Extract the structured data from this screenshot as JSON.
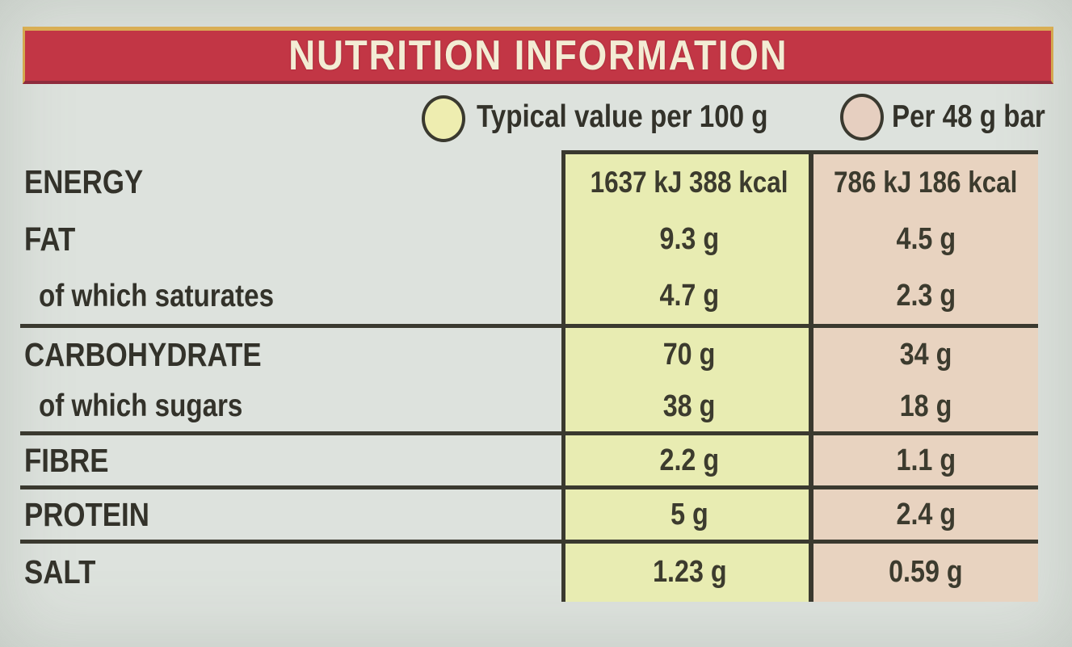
{
  "header": {
    "title": "NUTRITION INFORMATION"
  },
  "legend": {
    "per100": {
      "label": "Typical value per 100 g",
      "swatch_color": "#eeedb0"
    },
    "per_bar": {
      "label": "Per 48 g bar",
      "swatch_color": "#e6cfc0"
    }
  },
  "table": {
    "column_keys": [
      "Typical value per 100 g",
      "Per 48 g bar"
    ],
    "rows": [
      {
        "label": "ENERGY",
        "per_100g": "1637 kJ 388 kcal",
        "per_bar": "786 kJ 186 kcal"
      },
      {
        "label": "FAT",
        "per_100g": "9.3 g",
        "per_bar": "4.5 g"
      },
      {
        "label": "of which saturates",
        "per_100g": "4.7 g",
        "per_bar": "2.3 g"
      },
      {
        "label": "CARBOHYDRATE",
        "per_100g": "70 g",
        "per_bar": "34 g"
      },
      {
        "label": "of which sugars",
        "per_100g": "38 g",
        "per_bar": "18 g"
      },
      {
        "label": "FIBRE",
        "per_100g": "2.2 g",
        "per_bar": "1.1 g"
      },
      {
        "label": "PROTEIN",
        "per_100g": "5 g",
        "per_bar": "2.4 g"
      },
      {
        "label": "SALT",
        "per_100g": "1.23 g",
        "per_bar": "0.59 g"
      }
    ]
  },
  "colors": {
    "header_red": "#c23645",
    "header_gold_border": "#d9ae54",
    "title_cream": "#f3ecd4",
    "per_100g_column": "#e8ecb2",
    "per_bar_column": "#e8d3c0",
    "ink": "#38372e",
    "background": "#dde2dd"
  }
}
